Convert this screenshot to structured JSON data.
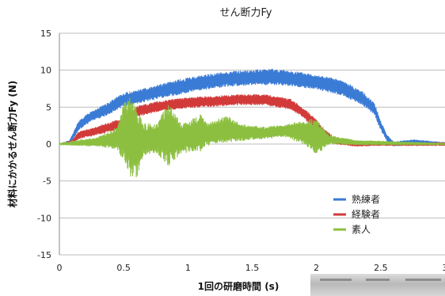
{
  "chart_data": {
    "type": "line",
    "title": "せん断力Fy",
    "xlabel": "1回の研磨時間 (s)",
    "ylabel": "材料にかかるせん断力Fy (N)",
    "xlim": [
      0,
      3
    ],
    "ylim": [
      -15,
      15
    ],
    "xticks": [
      "0",
      "0.5",
      "1",
      "1.5",
      "2",
      "2.5",
      "3"
    ],
    "yticks": [
      "15",
      "10",
      "5",
      "0",
      "-5",
      "-10",
      "-15"
    ],
    "grid": "horizontal",
    "legend_position": "lower-right",
    "series": [
      {
        "name": "熟練者",
        "color": "#3a7bd5",
        "x": [
          0,
          0.08,
          0.15,
          0.25,
          0.35,
          0.5,
          0.7,
          0.9,
          1.1,
          1.3,
          1.5,
          1.65,
          1.8,
          2.0,
          2.2,
          2.35,
          2.45,
          2.5,
          2.55,
          2.6,
          2.75,
          3.0
        ],
        "y": [
          0,
          0.2,
          2.5,
          3.8,
          4.5,
          6.0,
          6.8,
          7.6,
          8.3,
          8.8,
          9.0,
          9.1,
          8.9,
          8.4,
          7.6,
          6.3,
          4.8,
          2.5,
          0.8,
          0,
          0.3,
          0
        ],
        "amplitude": [
          0,
          0.3,
          0.6,
          0.7,
          0.8,
          0.9,
          0.9,
          1.0,
          1.0,
          1.0,
          1.0,
          1.1,
          1.0,
          1.0,
          1.0,
          0.9,
          0.8,
          0.6,
          0.4,
          0.3,
          0.3,
          0.2
        ]
      },
      {
        "name": "経験者",
        "color": "#d23a3a",
        "x": [
          0,
          0.1,
          0.15,
          0.25,
          0.35,
          0.5,
          0.6,
          0.8,
          1.0,
          1.2,
          1.4,
          1.6,
          1.8,
          1.9,
          2.0,
          2.05,
          2.15,
          2.3,
          2.5,
          3.0
        ],
        "y": [
          0,
          0.2,
          1.2,
          1.6,
          2.1,
          2.8,
          4.4,
          5.2,
          5.6,
          5.8,
          6.0,
          6.0,
          5.4,
          4.2,
          2.6,
          1.5,
          0.4,
          0,
          0,
          0
        ],
        "amplitude": [
          0,
          0.3,
          0.5,
          0.5,
          0.6,
          0.7,
          0.7,
          0.7,
          0.7,
          0.7,
          0.7,
          0.7,
          0.7,
          0.6,
          0.8,
          0.6,
          0.4,
          0.3,
          0.2,
          0.2
        ]
      },
      {
        "name": "素人",
        "color": "#8cbf3f",
        "x": [
          0,
          0.3,
          0.45,
          0.5,
          0.55,
          0.6,
          0.65,
          0.75,
          0.85,
          0.95,
          1.1,
          1.15,
          1.3,
          1.45,
          1.6,
          1.75,
          1.9,
          2.0,
          2.1,
          2.3,
          3.0
        ],
        "y": [
          0,
          0.3,
          0.8,
          1.5,
          1.0,
          0.2,
          0.5,
          0.8,
          1.2,
          0.8,
          1.5,
          1.3,
          2.0,
          1.5,
          1.5,
          1.8,
          1.6,
          1.0,
          0.6,
          0.2,
          0
        ],
        "amplitude": [
          0.1,
          0.6,
          1.5,
          4.0,
          5.5,
          5.0,
          2.2,
          2.0,
          4.2,
          2.0,
          2.5,
          1.5,
          1.8,
          1.0,
          0.8,
          0.8,
          1.6,
          2.5,
          0.6,
          0.3,
          0.1
        ]
      }
    ]
  }
}
